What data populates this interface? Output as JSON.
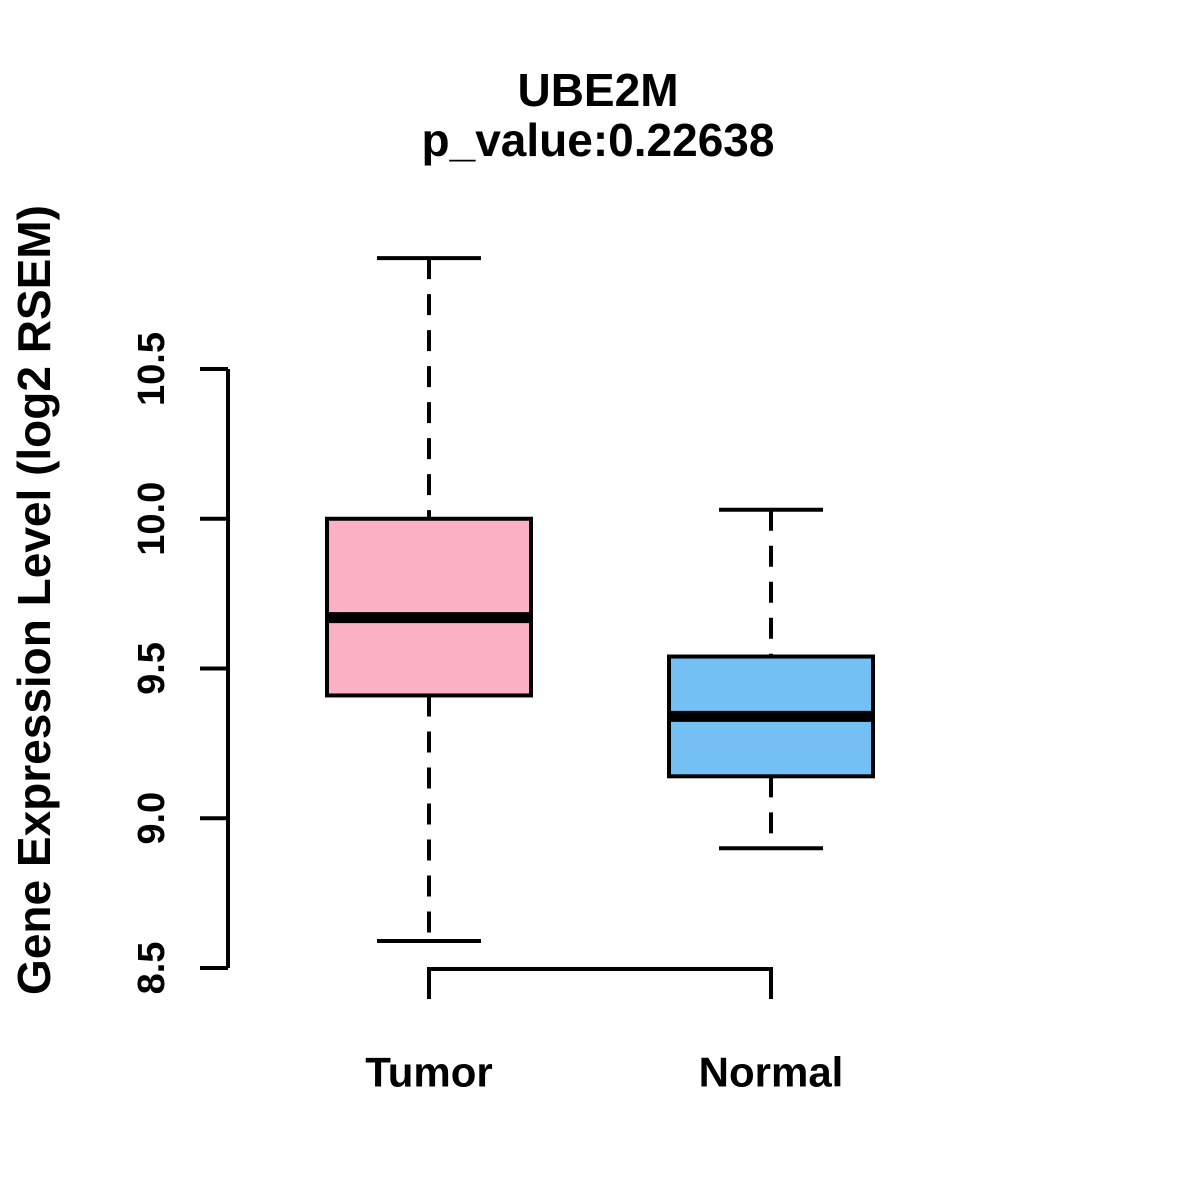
{
  "figure": {
    "background": "#ffffff",
    "line_color": "#000000"
  },
  "chart_data": {
    "type": "boxplot",
    "title": "UBE2M",
    "subtitle": "p_value:0.22638",
    "ylabel": "Gene Expression Level (log2 RSEM)",
    "xlabel": "",
    "categories": [
      "Tumor",
      "Normal"
    ],
    "ytick_labels": [
      "8.5",
      "9.0",
      "9.5",
      "10.0",
      "10.5"
    ],
    "ylim": [
      8.5,
      10.5
    ],
    "grid": false,
    "legend_position": "none",
    "orientation": "vertical",
    "whisker_style": "dashed",
    "series": [
      {
        "name": "Tumor",
        "fill_color": "#FCB0C3",
        "lower_whisker": 8.59,
        "q1": 9.41,
        "median": 9.67,
        "q3": 10.0,
        "upper_whisker": 10.87
      },
      {
        "name": "Normal",
        "fill_color": "#74BFF4",
        "lower_whisker": 8.9,
        "q1": 9.14,
        "median": 9.34,
        "q3": 9.54,
        "upper_whisker": 10.03
      }
    ]
  }
}
